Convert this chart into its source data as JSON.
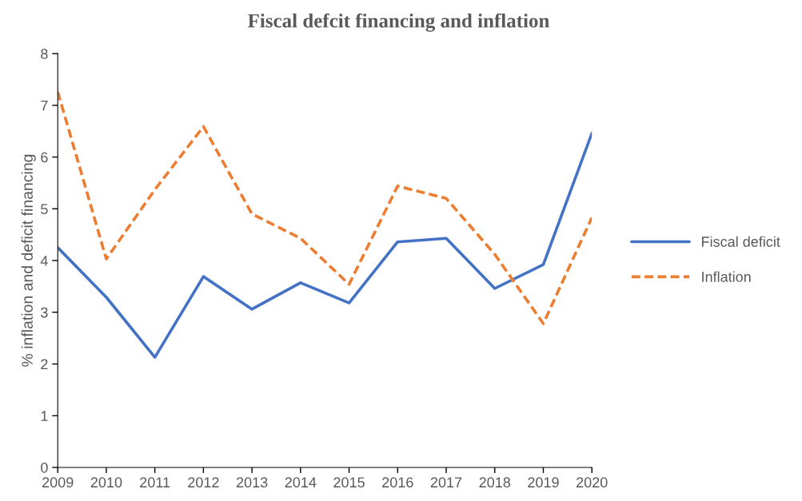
{
  "chart_data": {
    "type": "line",
    "title": "Fiscal defcit financing and inflation",
    "ylabel": "% inflation and deficit financing",
    "categories": [
      "2009",
      "2010",
      "2011",
      "2012",
      "2013",
      "2014",
      "2015",
      "2016",
      "2017",
      "2018",
      "2019",
      "2020"
    ],
    "series": [
      {
        "name": "Fiscal deficit",
        "color": "#4472c4",
        "line_style": "solid",
        "values": [
          4.25,
          3.29,
          2.13,
          3.69,
          3.06,
          3.57,
          3.18,
          4.36,
          4.43,
          3.46,
          3.92,
          6.46
        ]
      },
      {
        "name": "Inflation",
        "color": "#ed7d31",
        "line_style": "dashed",
        "values": [
          7.26,
          4.03,
          5.37,
          6.59,
          4.9,
          4.43,
          3.54,
          5.44,
          5.2,
          4.12,
          2.78,
          4.83
        ]
      }
    ],
    "ylim": [
      0,
      8
    ],
    "yticks": [
      0,
      1,
      2,
      3,
      4,
      5,
      6,
      7,
      8
    ],
    "grid": false,
    "legend": "right",
    "marker": "none"
  }
}
